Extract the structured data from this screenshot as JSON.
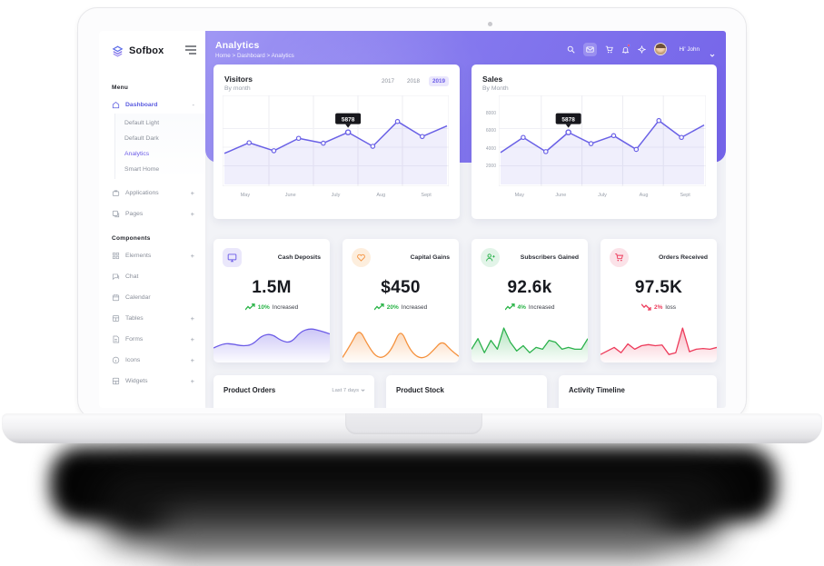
{
  "colors": {
    "accent": "#6c5ce7",
    "line": "#6a61e6",
    "green": "#27b345",
    "red": "#ed3b5b",
    "banner_from": "#a097f4",
    "banner_to": "#7464e9"
  },
  "sidebar": {
    "logo": "Sofbox",
    "menu_label": "Menu",
    "dashboard": {
      "label": "Dashboard",
      "collapse": "-"
    },
    "sub_items": [
      {
        "label": "Default Light"
      },
      {
        "label": "Default Dark"
      },
      {
        "label": "Analytics"
      },
      {
        "label": "Smart Home"
      }
    ],
    "items": [
      {
        "label": "Applications",
        "plus": "+"
      },
      {
        "label": "Pages",
        "plus": "+"
      }
    ],
    "components_label": "Components",
    "component_items": [
      {
        "label": "Elements",
        "plus": "+"
      },
      {
        "label": "Chat",
        "plus": ""
      },
      {
        "label": "Calendar",
        "plus": ""
      },
      {
        "label": "Tables",
        "plus": "+"
      },
      {
        "label": "Forms",
        "plus": "+"
      },
      {
        "label": "Icons",
        "plus": "+"
      },
      {
        "label": "Widgets",
        "plus": "+"
      }
    ]
  },
  "header": {
    "title": "Analytics",
    "breadcrumb": "Home > Dashboard > Analytics",
    "user": "Hi' John"
  },
  "visitors": {
    "title": "Visitors",
    "subtitle": "By month",
    "years": [
      "2017",
      "2018",
      "2019"
    ],
    "active_year": "2019",
    "months": [
      "May",
      "June",
      "July",
      "Aug",
      "Sept"
    ],
    "values": [
      3500,
      4700,
      3800,
      5200,
      4650,
      5878,
      4300,
      7100,
      5400,
      6600
    ],
    "ymax": 8400,
    "tooltip": "5878",
    "tooltip_index": 5
  },
  "sales": {
    "title": "Sales",
    "subtitle": "By Month",
    "years": [],
    "y_ticks": [
      "8000",
      "6000",
      "4000",
      "2000"
    ],
    "months": [
      "May",
      "June",
      "July",
      "Aug",
      "Sept"
    ],
    "values": [
      3600,
      5300,
      3700,
      5878,
      4600,
      5500,
      3950,
      7200,
      5300,
      6700
    ],
    "ymax": 8400,
    "tooltip": "5878",
    "tooltip_index": 3
  },
  "stats": [
    {
      "title": "Cash Deposits",
      "value": "1.5M",
      "change": "10%",
      "suffix": "Increased",
      "trend": "up",
      "color": "#6c5ce7",
      "tint": "#eae7fb",
      "icon": "monitor-icon",
      "smooth": true,
      "spark": [
        3,
        4.2,
        4,
        3.5,
        3.8,
        6.2,
        6.6,
        4.8,
        4.3,
        7.2,
        8,
        7.4,
        6.6
      ]
    },
    {
      "title": "Capital Gains",
      "value": "$450",
      "change": "20%",
      "suffix": "Increased",
      "trend": "up",
      "color": "#f5923e",
      "tint": "#fdeedd",
      "icon": "heart-icon",
      "smooth": true,
      "spark": [
        0.6,
        4,
        8.2,
        4,
        0.8,
        0.5,
        3,
        8.2,
        3,
        0.6,
        0.5,
        2.6,
        5,
        2.6,
        0.9
      ]
    },
    {
      "title": "Subscribers Gained",
      "value": "92.6k",
      "change": "4%",
      "suffix": "Increased",
      "trend": "up",
      "color": "#2bb24c",
      "tint": "#e2f4e8",
      "icon": "user-plus-icon",
      "smooth": false,
      "spark": [
        3,
        6,
        2,
        5.5,
        3,
        9,
        5,
        2.5,
        4,
        2,
        3.5,
        3,
        5.5,
        5,
        3,
        3.5,
        3,
        3,
        6
      ]
    },
    {
      "title": "Orders Received",
      "value": "97.5K",
      "change": "2%",
      "suffix": "loss",
      "trend": "down",
      "color": "#ed3b5b",
      "tint": "#fbe2e8",
      "icon": "cart-icon",
      "smooth": false,
      "spark": [
        1.5,
        2.5,
        3.5,
        2,
        4.5,
        3,
        4,
        4.3,
        4,
        4.2,
        1.5,
        2,
        9,
        2.3,
        3,
        3.2,
        3,
        3.5
      ]
    }
  ],
  "bottom_cards": [
    {
      "title": "Product Orders",
      "filter": "Last 7 days"
    },
    {
      "title": "Product Stock",
      "filter": ""
    },
    {
      "title": "Activity Timeline",
      "filter": ""
    }
  ]
}
